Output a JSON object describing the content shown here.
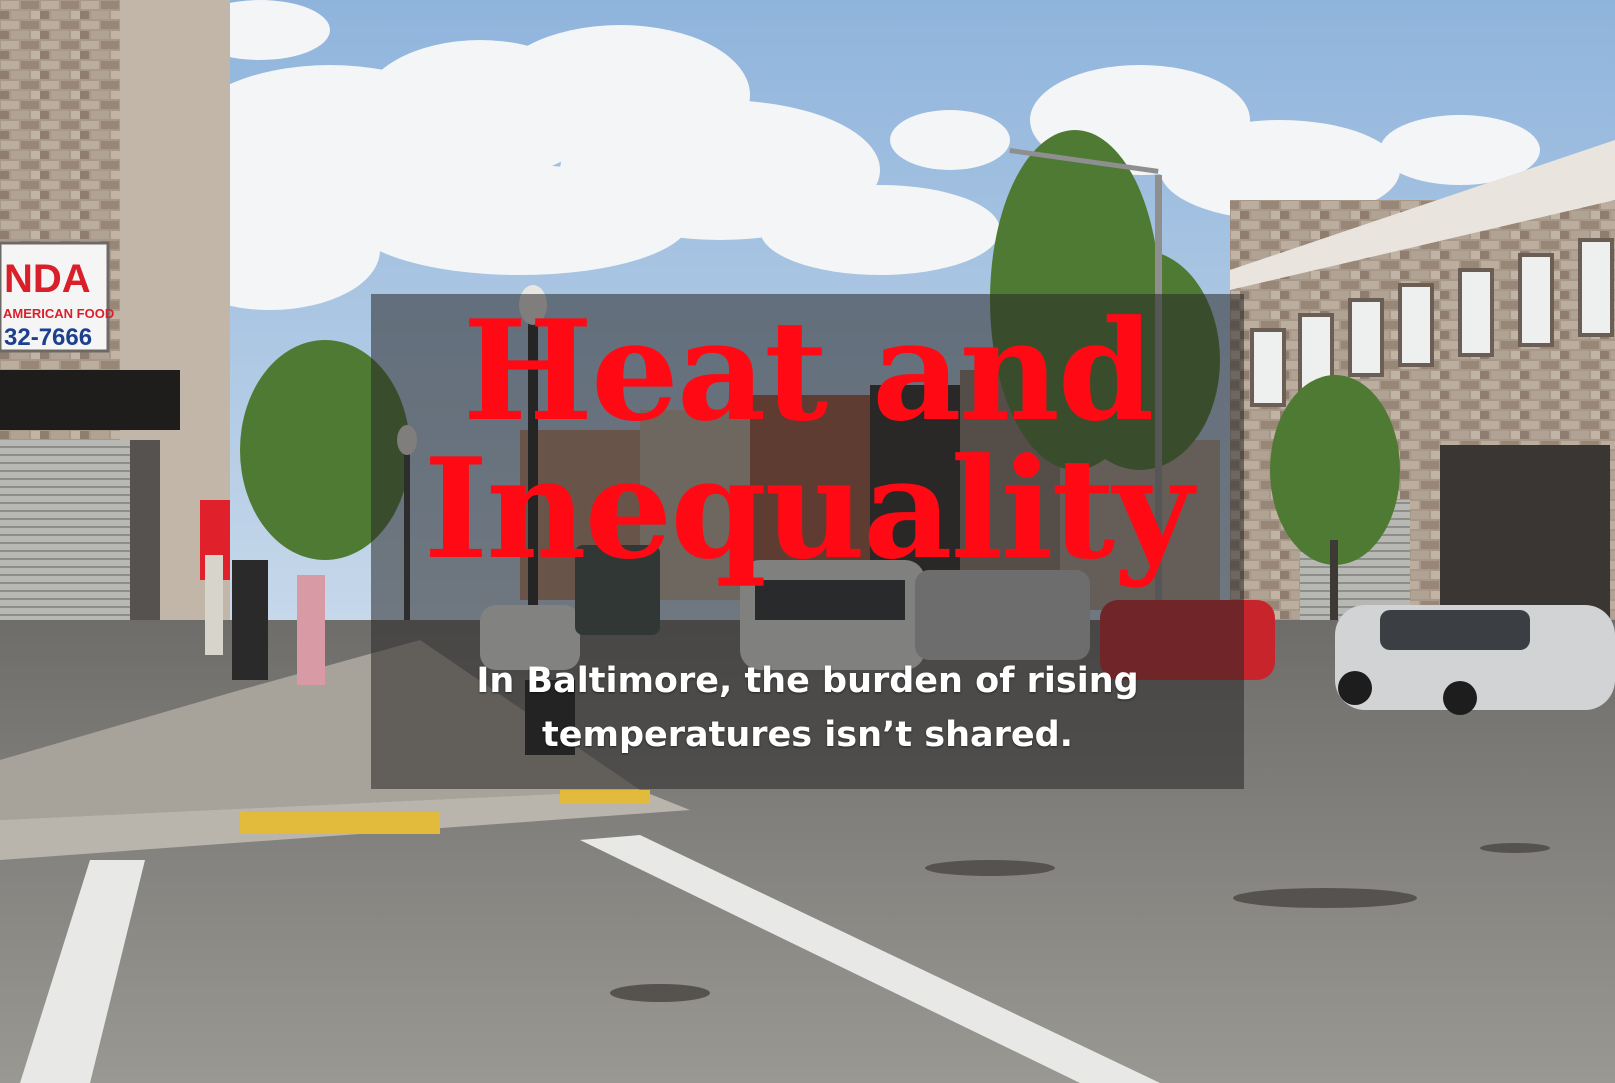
{
  "hero": {
    "headline_line1": "Heat and",
    "headline_line2": "Inequality",
    "subhead_line1": "In Baltimore, the burden of rising",
    "subhead_line2": "temperatures isn’t shared.",
    "headline_color": "#ff0a14",
    "subhead_color": "#ffffff"
  },
  "background_photo": {
    "storefront_sign_line1": "NDA",
    "storefront_sign_line2": "AMERICAN FOOD",
    "storefront_sign_line3": "32-7666",
    "sky_color": "#a9c6e2",
    "street_color": "#8c8a86"
  }
}
